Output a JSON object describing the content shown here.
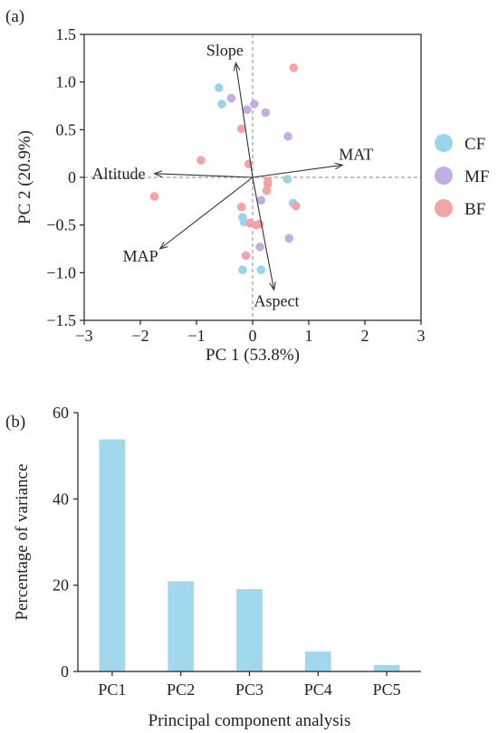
{
  "colors": {
    "CF": "#9ad4ea",
    "MF": "#c2aee2",
    "BF": "#f4a3a6",
    "bar": "#a2d8ee",
    "axis": "#222222",
    "refline": "#888888",
    "arrow": "#333333"
  },
  "chart_data": [
    {
      "panel_label": "(a)",
      "type": "scatter",
      "subtype": "pca-biplot",
      "xlabel": "PC 1 (53.8%)",
      "ylabel": "PC 2 (20.9%)",
      "xlim": [
        -3,
        3
      ],
      "ylim": [
        -1.5,
        1.5
      ],
      "xticks": [
        -3,
        -2,
        -1,
        0,
        1,
        2,
        3
      ],
      "yticks": [
        -1.5,
        -1.0,
        -0.5,
        0,
        0.5,
        1.0,
        1.5
      ],
      "xtick_labels": [
        "−3",
        "−2",
        "−1",
        "0",
        "1",
        "2",
        "3"
      ],
      "ytick_labels": [
        "−1.5",
        "−1.0",
        "−0.5",
        "0",
        "0.5",
        "1.0",
        "1.5"
      ],
      "reference_lines": [
        0,
        0
      ],
      "legend": {
        "placement": "right",
        "entries": [
          "CF",
          "MF",
          "BF"
        ]
      },
      "series": [
        {
          "name": "CF",
          "points": [
            [
              -0.6,
              0.94
            ],
            [
              -0.55,
              0.77
            ],
            [
              -0.18,
              -0.42
            ],
            [
              -0.15,
              -0.47
            ],
            [
              0.62,
              -0.02
            ],
            [
              0.72,
              -0.27
            ],
            [
              -0.18,
              -0.97
            ],
            [
              0.15,
              -0.97
            ]
          ]
        },
        {
          "name": "MF",
          "points": [
            [
              -0.38,
              0.83
            ],
            [
              -0.1,
              0.71
            ],
            [
              0.03,
              0.77
            ],
            [
              0.23,
              0.68
            ],
            [
              0.63,
              0.43
            ],
            [
              0.15,
              -0.24
            ],
            [
              0.13,
              -0.73
            ],
            [
              0.65,
              -0.64
            ]
          ]
        },
        {
          "name": "BF",
          "points": [
            [
              0.73,
              1.15
            ],
            [
              -0.2,
              0.51
            ],
            [
              -0.92,
              0.18
            ],
            [
              -0.07,
              0.14
            ],
            [
              0.27,
              -0.04
            ],
            [
              0.27,
              -0.07
            ],
            [
              0.25,
              -0.14
            ],
            [
              -1.75,
              -0.2
            ],
            [
              -0.2,
              -0.31
            ],
            [
              0.77,
              -0.3
            ],
            [
              -0.05,
              -0.48
            ],
            [
              0.06,
              -0.5
            ],
            [
              0.12,
              -0.49
            ],
            [
              -0.12,
              -0.82
            ]
          ]
        }
      ],
      "loadings": [
        {
          "name": "Slope",
          "x": -0.3,
          "y": 1.2
        },
        {
          "name": "Altitude",
          "x": -1.75,
          "y": 0.04
        },
        {
          "name": "MAT",
          "x": 1.6,
          "y": 0.13
        },
        {
          "name": "MAP",
          "x": -1.65,
          "y": -0.75
        },
        {
          "name": "Aspect",
          "x": 0.38,
          "y": -1.18
        }
      ]
    },
    {
      "panel_label": "(b)",
      "type": "bar",
      "xlabel": "Principal component analysis",
      "ylabel": "Percentage of variance",
      "categories": [
        "PC1",
        "PC2",
        "PC3",
        "PC4",
        "PC5"
      ],
      "values": [
        53.8,
        20.9,
        19.1,
        4.6,
        1.5
      ],
      "ylim": [
        0,
        60
      ],
      "yticks": [
        0,
        20,
        40,
        60
      ]
    }
  ]
}
